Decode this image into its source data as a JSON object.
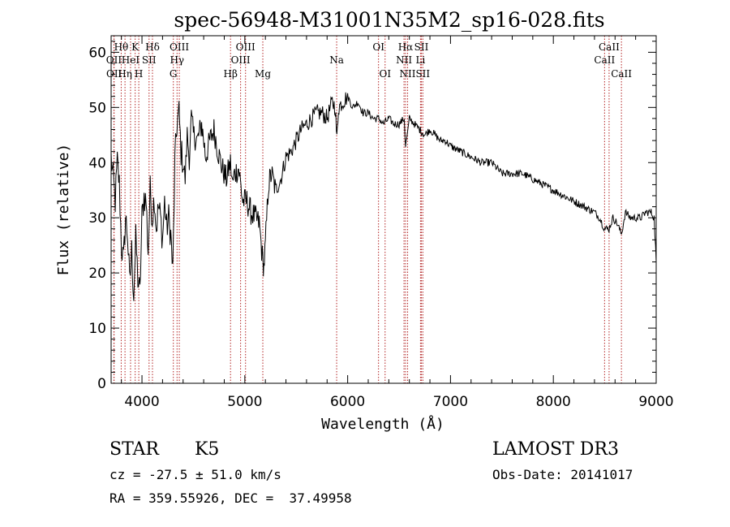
{
  "chart_data": {
    "type": "line",
    "title": "spec-56948-M31001N35M2_sp16-028.fits",
    "xlabel": "Wavelength (Å)",
    "ylabel": "Flux (relative)",
    "xlim": [
      3700,
      9000
    ],
    "ylim": [
      0,
      63
    ],
    "x_ticks": [
      4000,
      5000,
      6000,
      7000,
      8000,
      9000
    ],
    "y_ticks": [
      0,
      10,
      20,
      30,
      40,
      50,
      60
    ],
    "grid": false,
    "line_color": "#000000",
    "marker_color": "#b22222",
    "series": [
      {
        "x": [
          3700,
          3720,
          3740,
          3760,
          3780,
          3800,
          3820,
          3840,
          3860,
          3880,
          3900,
          3920,
          3940,
          3960,
          3980,
          4000,
          4020,
          4040,
          4060,
          4080,
          4100,
          4120,
          4140,
          4160,
          4180,
          4200,
          4220,
          4240,
          4260,
          4280,
          4300,
          4320,
          4340,
          4360,
          4380,
          4400,
          4420,
          4440,
          4460,
          4480,
          4500,
          4540,
          4580,
          4620,
          4660,
          4700,
          4740,
          4780,
          4820,
          4860,
          4880,
          4900,
          4940,
          4980,
          5020,
          5060,
          5100,
          5140,
          5170,
          5185,
          5200,
          5230,
          5260,
          5300,
          5350,
          5400,
          5450,
          5500,
          5550,
          5600,
          5650,
          5700,
          5750,
          5800,
          5850,
          5880,
          5895,
          5910,
          5950,
          6000,
          6050,
          6100,
          6150,
          6200,
          6250,
          6300,
          6350,
          6400,
          6450,
          6500,
          6550,
          6563,
          6580,
          6600,
          6650,
          6700,
          6750,
          6800,
          6850,
          6900,
          6950,
          7000,
          7100,
          7200,
          7300,
          7400,
          7500,
          7600,
          7700,
          7800,
          7900,
          8000,
          8100,
          8200,
          8300,
          8400,
          8450,
          8498,
          8542,
          8580,
          8620,
          8662,
          8700,
          8750,
          8800,
          8850,
          8900,
          8950,
          8980,
          9000
        ],
        "y": [
          41,
          37,
          33,
          40,
          36,
          25,
          22,
          30,
          27,
          18,
          24,
          16,
          26,
          19,
          16,
          30,
          34,
          33,
          24,
          35,
          30,
          34,
          28,
          32,
          30,
          26,
          33,
          28,
          30,
          27,
          20,
          40,
          47,
          49,
          42,
          40,
          37,
          45,
          41,
          48,
          45,
          44,
          47,
          41,
          44,
          46,
          42,
          39,
          37,
          40,
          36,
          38,
          39,
          33,
          33,
          31,
          30,
          29,
          23,
          21,
          25,
          36,
          38,
          35,
          37,
          41,
          42,
          44,
          46,
          47,
          48,
          49,
          49,
          48,
          51,
          50,
          44,
          50,
          51,
          52,
          50,
          51,
          49,
          49,
          48,
          48,
          47,
          48,
          47,
          47,
          48,
          43,
          45,
          48,
          47,
          46,
          45,
          46,
          45,
          44,
          44,
          43,
          42,
          41,
          40,
          40,
          38,
          38,
          38,
          37,
          36,
          35,
          34,
          33,
          32,
          31,
          30,
          28,
          28,
          30,
          29,
          27,
          31,
          30,
          30,
          30,
          31,
          31,
          30,
          22
        ]
      }
    ],
    "line_markers": [
      {
        "label": "Hθ",
        "x": 3798,
        "row": 0
      },
      {
        "label": "OII",
        "x": 3727,
        "row": 1
      },
      {
        "label": "OII",
        "x": 3729,
        "row": 2
      },
      {
        "label": "K",
        "x": 3934,
        "row": 0
      },
      {
        "label": "HeI",
        "x": 3889,
        "row": 1
      },
      {
        "label": "Hη",
        "x": 3835,
        "row": 2
      },
      {
        "label": "Hδ",
        "x": 4102,
        "row": 0
      },
      {
        "label": "SII",
        "x": 4069,
        "row": 1
      },
      {
        "label": "H",
        "x": 3969,
        "row": 2
      },
      {
        "label": "OIII",
        "x": 4363,
        "row": 0
      },
      {
        "label": "Hγ",
        "x": 4341,
        "row": 1
      },
      {
        "label": "G",
        "x": 4305,
        "row": 2
      },
      {
        "label": "OIII",
        "x": 5007,
        "row": 0
      },
      {
        "label": "OIII",
        "x": 4959,
        "row": 1
      },
      {
        "label": "Hβ",
        "x": 4861,
        "row": 2
      },
      {
        "label": "Mg",
        "x": 5175,
        "row": 2
      },
      {
        "label": "Na",
        "x": 5893,
        "row": 1
      },
      {
        "label": "OI",
        "x": 6300,
        "row": 0
      },
      {
        "label": "OI",
        "x": 6364,
        "row": 2
      },
      {
        "label": "Hα",
        "x": 6563,
        "row": 0
      },
      {
        "label": "NII",
        "x": 6548,
        "row": 1
      },
      {
        "label": "NII",
        "x": 6583,
        "row": 2
      },
      {
        "label": "SII",
        "x": 6717,
        "row": 0
      },
      {
        "label": "Li",
        "x": 6708,
        "row": 1
      },
      {
        "label": "SII",
        "x": 6731,
        "row": 2
      },
      {
        "label": "CaII",
        "x": 8542,
        "row": 0
      },
      {
        "label": "CaII",
        "x": 8498,
        "row": 1
      },
      {
        "label": "CaII",
        "x": 8662,
        "row": 2
      }
    ]
  },
  "info": {
    "object_class": "STAR",
    "subclass": "K5",
    "survey": "LAMOST DR3",
    "redshift": "cz = -27.5 ± 51.0 km/s",
    "obs_date": "Obs-Date: 20141017",
    "coords": "RA = 359.55926, DEC =  37.49958"
  }
}
